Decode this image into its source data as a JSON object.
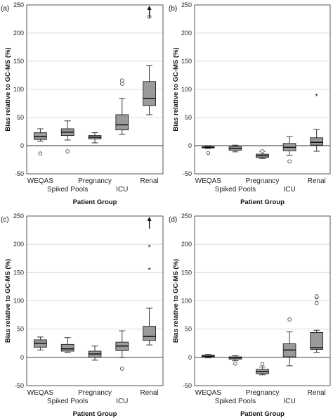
{
  "chart_data": [
    {
      "type": "box",
      "panel_label": "(a)",
      "xlabel": "Patient Group",
      "ylabel": "Bias relative to GC-MS (%)",
      "ylim": [
        -50,
        250
      ],
      "yticks": [
        -50,
        0,
        50,
        100,
        150,
        200,
        250
      ],
      "grid": "horizontal",
      "categories": [
        "WEQAS",
        "Spiked Pools",
        "Pregnancy",
        "ICU",
        "Renal"
      ],
      "boxes": [
        {
          "whisker_low": 8,
          "q1": 11,
          "median": 16,
          "q3": 23,
          "whisker_high": 30,
          "outliers": [
            -14
          ]
        },
        {
          "whisker_low": 10,
          "q1": 18,
          "median": 24,
          "q3": 30,
          "whisker_high": 44,
          "outliers": [
            -10
          ]
        },
        {
          "whisker_low": 5,
          "q1": 12,
          "median": 15,
          "q3": 18,
          "whisker_high": 23,
          "outliers": []
        },
        {
          "whisker_low": 20,
          "q1": 28,
          "median": 37,
          "q3": 55,
          "whisker_high": 84,
          "outliers": [
            110,
            116
          ]
        },
        {
          "whisker_low": 55,
          "q1": 71,
          "median": 84,
          "q3": 114,
          "whisker_high": 142,
          "outliers": [
            229
          ]
        }
      ],
      "arrow_category": "Renal"
    },
    {
      "type": "box",
      "panel_label": "(b)",
      "xlabel": "Patient Group",
      "ylabel": "Bias relative to GC-MS (%)",
      "ylim": [
        -50,
        250
      ],
      "yticks": [
        -50,
        0,
        50,
        100,
        150,
        200,
        250
      ],
      "grid": "horizontal",
      "categories": [
        "WEQAS",
        "Spiked Pools",
        "Pregnancy",
        "ICU",
        "Renal"
      ],
      "boxes": [
        {
          "whisker_low": -5,
          "q1": -4,
          "median": -3,
          "q3": -2,
          "whisker_high": -1,
          "outliers": [
            -13
          ]
        },
        {
          "whisker_low": -11,
          "q1": -8,
          "median": -5,
          "q3": -2,
          "whisker_high": 1,
          "outliers": []
        },
        {
          "whisker_low": -23,
          "q1": -21,
          "median": -18,
          "q3": -15,
          "whisker_high": -10,
          "outliers": [
            -10
          ]
        },
        {
          "whisker_low": -17,
          "q1": -9,
          "median": -3,
          "q3": 4,
          "whisker_high": 16,
          "outliers": [
            -28
          ]
        },
        {
          "whisker_low": -10,
          "q1": 1,
          "median": 6,
          "q3": 14,
          "whisker_high": 29,
          "outliers": [
            88
          ]
        }
      ]
    },
    {
      "type": "box",
      "panel_label": "(c)",
      "xlabel": "Patient Group",
      "ylabel": "Bias relative to GC-MS (%)",
      "ylim": [
        -50,
        250
      ],
      "yticks": [
        -50,
        0,
        50,
        100,
        150,
        200,
        250
      ],
      "grid": "horizontal",
      "categories": [
        "WEQAS",
        "Spiked Pools",
        "Pregnancy",
        "ICU",
        "Renal"
      ],
      "boxes": [
        {
          "whisker_low": 13,
          "q1": 18,
          "median": 25,
          "q3": 31,
          "whisker_high": 36,
          "outliers": []
        },
        {
          "whisker_low": 9,
          "q1": 11,
          "median": 15,
          "q3": 23,
          "whisker_high": 35,
          "outliers": []
        },
        {
          "whisker_low": -5,
          "q1": 0,
          "median": 6,
          "q3": 11,
          "whisker_high": 20,
          "outliers": []
        },
        {
          "whisker_low": 0,
          "q1": 12,
          "median": 20,
          "q3": 27,
          "whisker_high": 47,
          "outliers": [
            -20
          ]
        },
        {
          "whisker_low": 22,
          "q1": 30,
          "median": 37,
          "q3": 55,
          "whisker_high": 87,
          "outliers": [
            155,
            195
          ]
        }
      ],
      "arrow_category": "Renal"
    },
    {
      "type": "box",
      "panel_label": "(d)",
      "xlabel": "Patient Group",
      "ylabel": "Bias relative to GC-MS (%)",
      "ylim": [
        -50,
        250
      ],
      "yticks": [
        -50,
        0,
        50,
        100,
        150,
        200,
        250
      ],
      "grid": "horizontal",
      "categories": [
        "WEQAS",
        "Spiked Pools",
        "Pregnancy",
        "ICU",
        "Renal"
      ],
      "boxes": [
        {
          "whisker_low": -1,
          "q1": 0,
          "median": 2,
          "q3": 4,
          "whisker_high": 5,
          "outliers": []
        },
        {
          "whisker_low": -6,
          "q1": -3,
          "median": -1,
          "q3": 1,
          "whisker_high": 3,
          "outliers": [
            -11
          ]
        },
        {
          "whisker_low": -31,
          "q1": -29,
          "median": -25,
          "q3": -21,
          "whisker_high": -17,
          "outliers": [
            -12
          ]
        },
        {
          "whisker_low": -15,
          "q1": 1,
          "median": 13,
          "q3": 24,
          "whisker_high": 45,
          "outliers": [
            67
          ]
        },
        {
          "whisker_low": 9,
          "q1": 14,
          "median": 17,
          "q3": 44,
          "whisker_high": 48,
          "outliers": [
            96,
            106,
            108
          ]
        }
      ]
    }
  ]
}
